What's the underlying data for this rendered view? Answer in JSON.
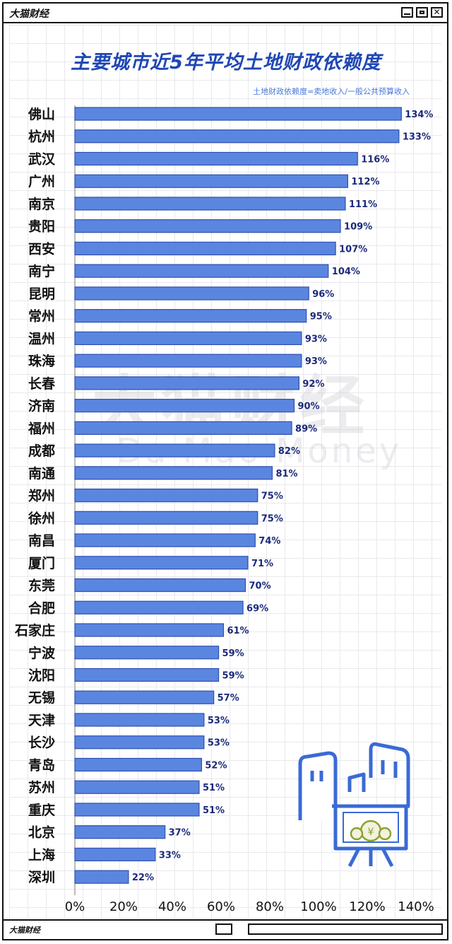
{
  "window": {
    "title": "大猫财经"
  },
  "status": {
    "title": "大猫财经"
  },
  "watermark": {
    "cn": "大猫财经",
    "en": "Da Mao Money"
  },
  "colors": {
    "bar": "#5b86e0",
    "bar_stroke": "#2d4fb0",
    "label": "#1c2a7a",
    "title": "#1f47b4",
    "note": "#4a78d6"
  },
  "chart_data": {
    "type": "bar",
    "orientation": "horizontal",
    "title": "主要城市近5年平均土地财政依赖度",
    "note": "土地财政依赖度=卖地收入/一般公共预算收入",
    "categories": [
      "佛山",
      "杭州",
      "武汉",
      "广州",
      "南京",
      "贵阳",
      "西安",
      "南宁",
      "昆明",
      "常州",
      "温州",
      "珠海",
      "长春",
      "济南",
      "福州",
      "成都",
      "南通",
      "郑州",
      "徐州",
      "南昌",
      "厦门",
      "东莞",
      "合肥",
      "石家庄",
      "宁波",
      "沈阳",
      "无锡",
      "天津",
      "长沙",
      "青岛",
      "苏州",
      "重庆",
      "北京",
      "上海",
      "深圳"
    ],
    "values": [
      134,
      133,
      116,
      112,
      111,
      109,
      107,
      104,
      96,
      95,
      93,
      93,
      92,
      90,
      89,
      82,
      81,
      75,
      75,
      74,
      71,
      70,
      69,
      61,
      59,
      59,
      57,
      53,
      53,
      52,
      51,
      51,
      37,
      33,
      22
    ],
    "value_labels": [
      "134%",
      "133%",
      "116%",
      "112%",
      "111%",
      "109%",
      "107%",
      "104%",
      "96%",
      "95%",
      "93%",
      "93%",
      "92%",
      "90%",
      "89%",
      "82%",
      "81%",
      "75%",
      "75%",
      "74%",
      "71%",
      "70%",
      "69%",
      "61%",
      "59%",
      "59%",
      "57%",
      "53%",
      "53%",
      "52%",
      "51%",
      "51%",
      "37%",
      "33%",
      "22%"
    ],
    "x_ticks": [
      "0%",
      "20%",
      "40%",
      "60%",
      "80%",
      "100%",
      "120%",
      "140%"
    ],
    "xlim": [
      0,
      140
    ],
    "grid": true
  }
}
